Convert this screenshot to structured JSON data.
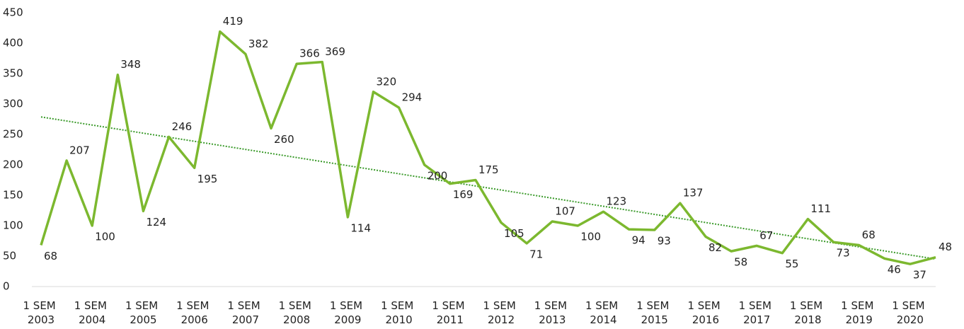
{
  "chart_data": {
    "type": "line",
    "categories": [
      "1 SEM\n2003",
      null,
      "1 SEM\n2004",
      null,
      "1 SEM\n2005",
      null,
      "1 SEM\n2006",
      null,
      "1 SEM\n2007",
      null,
      "1 SEM\n2008",
      null,
      "1 SEM\n2009",
      null,
      "1 SEM\n2010",
      null,
      "1 SEM\n2011",
      null,
      "1 SEM\n2012",
      null,
      "1 SEM\n2013",
      null,
      "1 SEM\n2014",
      null,
      "1 SEM\n2015",
      null,
      "1 SEM\n2016",
      null,
      "1 SEM\n2017",
      null,
      "1 SEM\n2018",
      null,
      "1 SEM\n2019",
      null,
      "1 SEM\n2020",
      null
    ],
    "values": [
      68,
      207,
      100,
      348,
      124,
      246,
      195,
      419,
      382,
      260,
      366,
      369,
      114,
      320,
      294,
      200,
      169,
      175,
      105,
      71,
      107,
      100,
      123,
      94,
      93,
      137,
      82,
      58,
      67,
      55,
      111,
      73,
      68,
      46,
      37,
      48
    ],
    "color": "#7cb82f",
    "trendline": true,
    "ylim": [
      0,
      450
    ],
    "yticks": [
      0,
      50,
      100,
      150,
      200,
      250,
      300,
      350,
      400,
      450
    ],
    "grid": false
  }
}
